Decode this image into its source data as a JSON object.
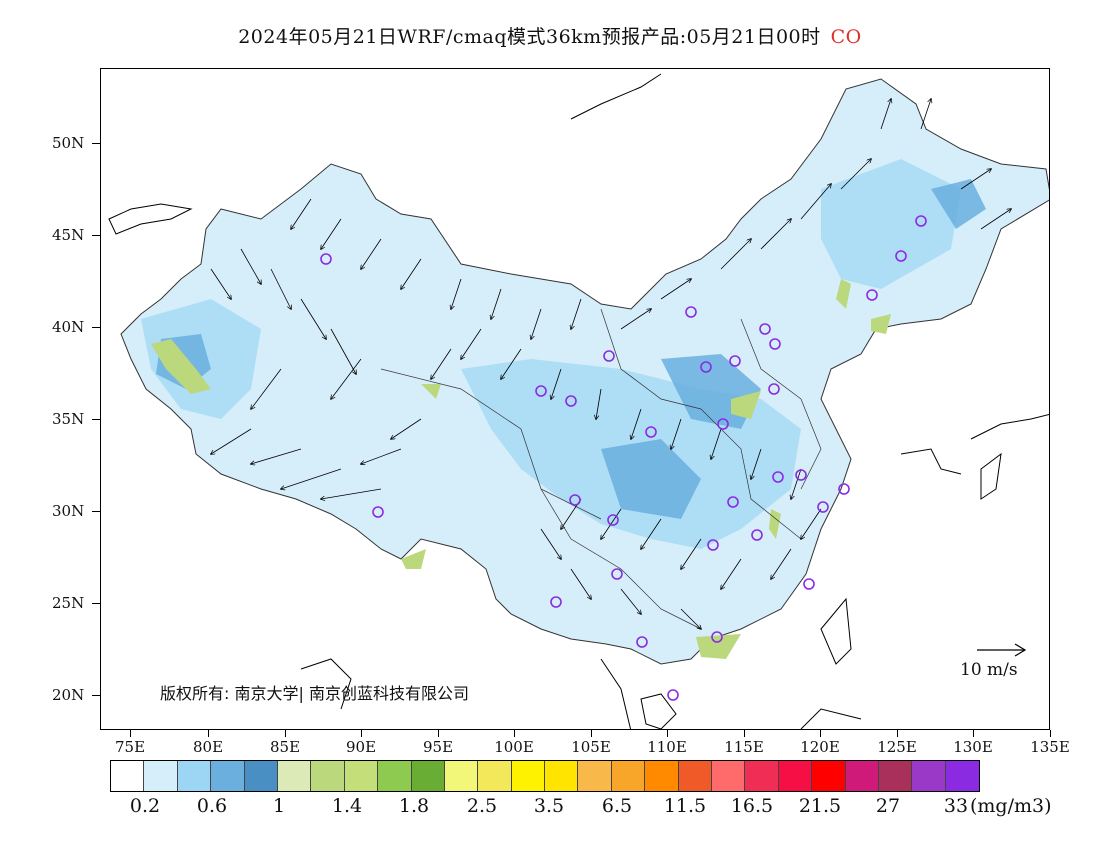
{
  "title": {
    "main": "2024年05月21日WRF/cmaq模式36km预报产品:05月21日00时",
    "species": "CO",
    "species_color": "#e0302a"
  },
  "map": {
    "lat_labels": [
      "50N",
      "45N",
      "40N",
      "35N",
      "30N",
      "25N",
      "20N"
    ],
    "lon_labels": [
      "75E",
      "80E",
      "85E",
      "90E",
      "95E",
      "100E",
      "105E",
      "110E",
      "115E",
      "120E",
      "125E",
      "130E",
      "135E"
    ],
    "watermark": "版权所有: 南京大学| 南京创蓝科技有限公司",
    "wind_reference": "10 m/s"
  },
  "legend": {
    "unit": "(mg/m3)",
    "colors": [
      "#ffffff",
      "#d6eefa",
      "#9dd6f4",
      "#6aafde",
      "#4a8fc4",
      "#dceab8",
      "#bcd87c",
      "#c4df7a",
      "#8fca50",
      "#6aad34",
      "#f2f77a",
      "#f2e85a",
      "#fff200",
      "#ffe400",
      "#f9b84a",
      "#f7a62a",
      "#ff8a00",
      "#f05a28",
      "#ff6a6a",
      "#f02e55",
      "#f50f45",
      "#ff0000",
      "#cf1a7a",
      "#a8305a",
      "#9a38c8",
      "#8a2be2"
    ],
    "labels": [
      "0.2",
      "0.6",
      "1",
      "1.4",
      "1.8",
      "2.5",
      "3.5",
      "6.5",
      "11.5",
      "16.5",
      "21.5",
      "27",
      "33"
    ]
  }
}
